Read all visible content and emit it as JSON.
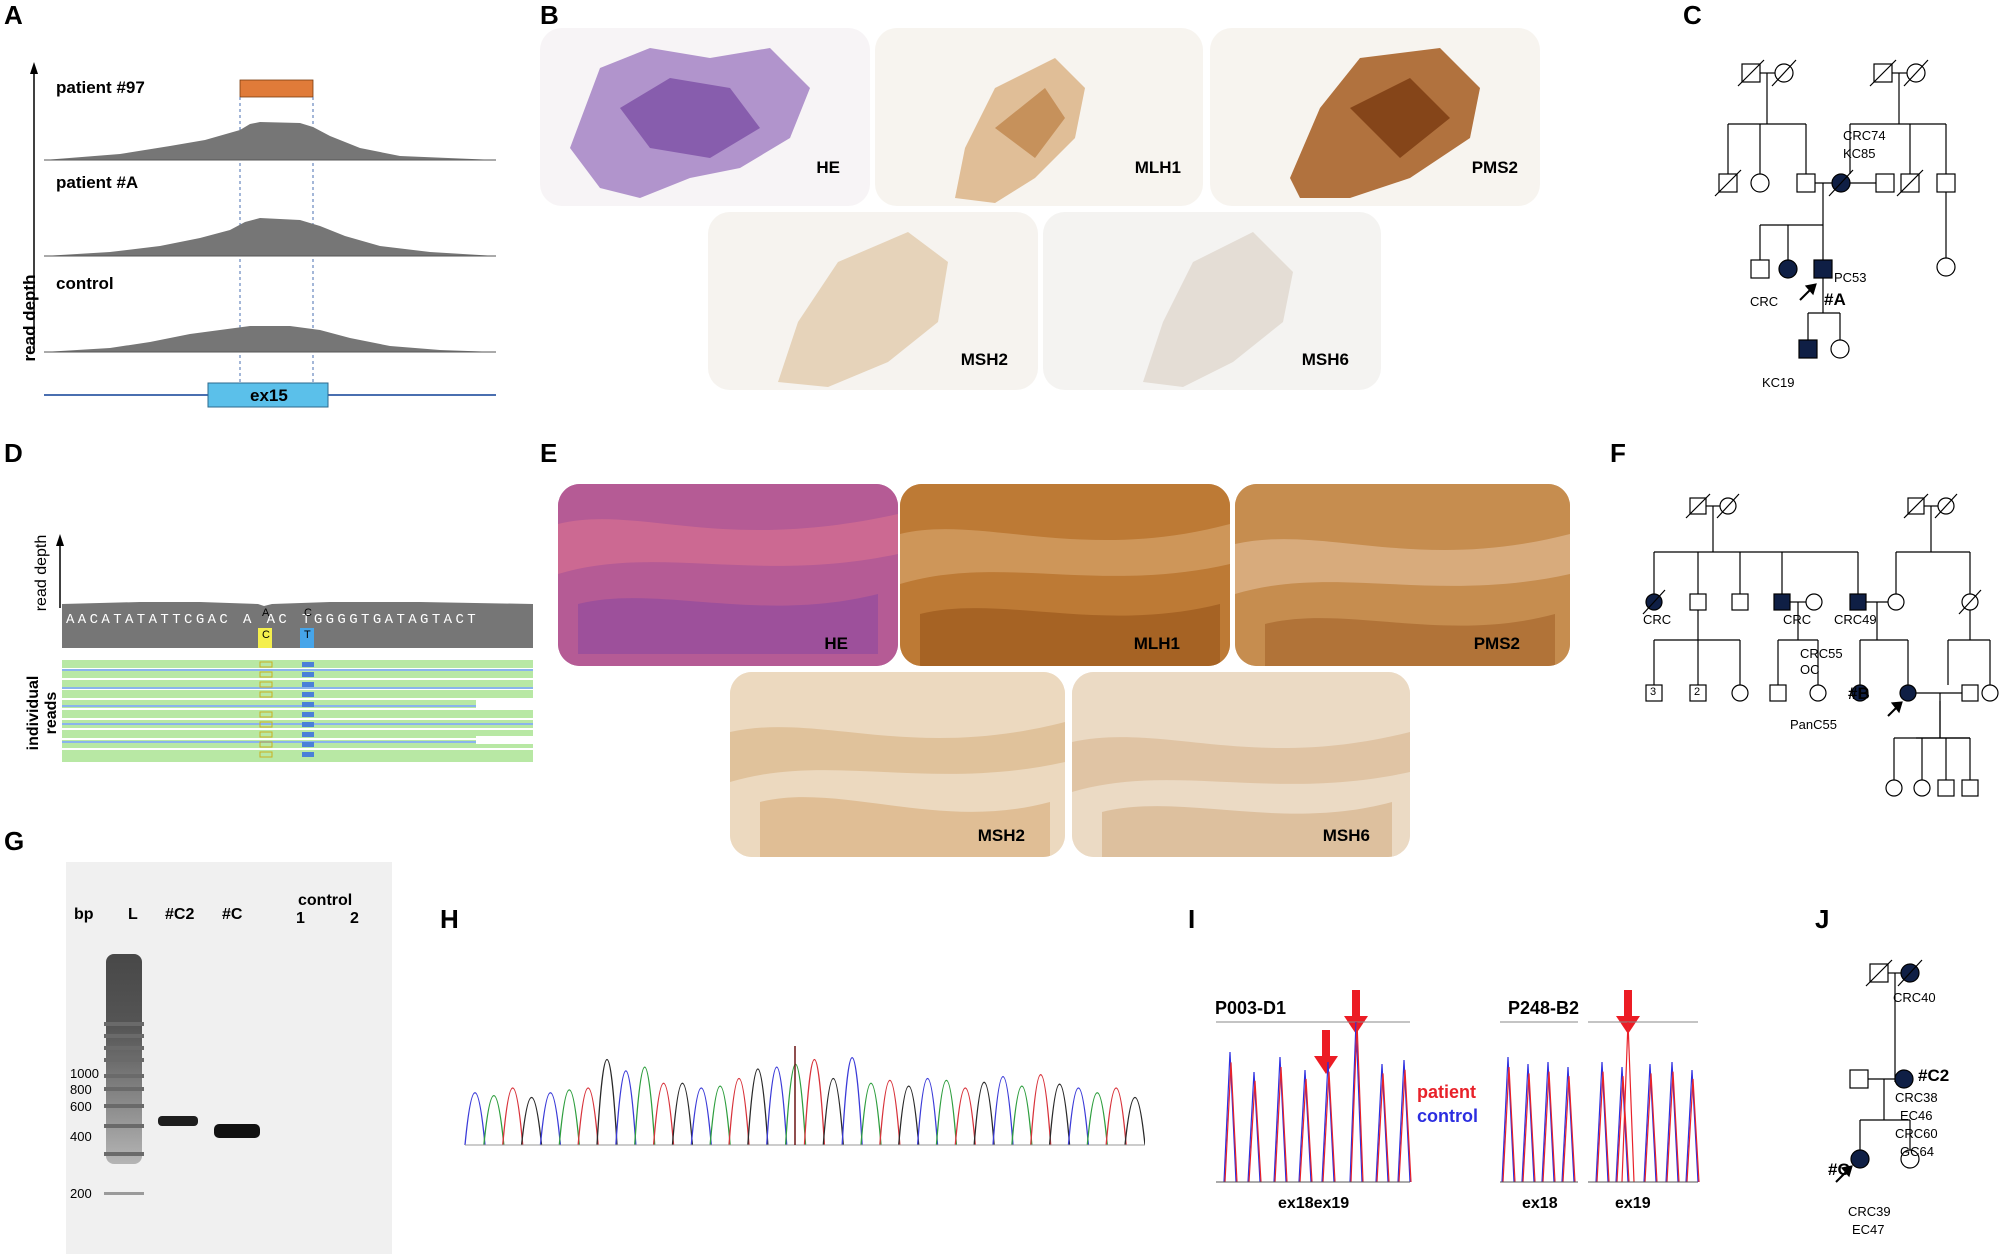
{
  "panels": {
    "A": {
      "letter": "A",
      "tracks": [
        "patient #97",
        "patient #A",
        "control"
      ],
      "axis_label": "read depth",
      "exon": "ex15"
    },
    "B": {
      "letter": "B",
      "stains": [
        "HE",
        "MLH1",
        "PMS2",
        "MSH2",
        "MSH6"
      ]
    },
    "C": {
      "letter": "C",
      "labels": {
        "top": "CRC74",
        "top2": "KC85",
        "crc": "CRC",
        "pc": "PC53",
        "proband": "#A",
        "kc": "KC19"
      }
    },
    "D": {
      "letter": "D",
      "axis_label": "read depth",
      "reads_label_1": "individual",
      "reads_label_2": "reads",
      "sequence": "AACATATATTCGAC A AC TGGGGTGATAGTACT",
      "ref_1": "A",
      "alt_1": "C",
      "ref_2": "C",
      "alt_2": "T"
    },
    "E": {
      "letter": "E",
      "stains": [
        "HE",
        "MLH1",
        "PMS2",
        "MSH2",
        "MSH6"
      ]
    },
    "F": {
      "letter": "F",
      "labels": {
        "crc_a": "CRC",
        "crc_b": "CRC",
        "crc49": "CRC49",
        "crc55": "CRC55",
        "oc": "OC",
        "proband": "#B",
        "panc": "PanC55",
        "box3": "3",
        "box2": "2"
      }
    },
    "G": {
      "letter": "G",
      "lanes": {
        "bp": "bp",
        "ladder": "L",
        "c2": "#C2",
        "c": "#C",
        "control": "control",
        "ctrl1": "1",
        "ctrl2": "2"
      },
      "ladder_sizes": [
        "1000",
        "800",
        "600",
        "400",
        "200"
      ]
    },
    "H": {
      "letter": "H"
    },
    "I": {
      "letter": "I",
      "probe1": "P003-D1",
      "probe2": "P248-B2",
      "legend_patient": "patient",
      "legend_control": "control",
      "x1": "ex18ex19",
      "x2": "ex18",
      "x3": "ex19"
    },
    "J": {
      "letter": "J",
      "labels": {
        "crc40": "CRC40",
        "c2": "#C2",
        "crc38": "CRC38",
        "ec46": "EC46",
        "crc60": "CRC60",
        "gc64": "GC64",
        "proband": "#C",
        "crc39": "CRC39",
        "ec47": "EC47"
      }
    }
  },
  "colors": {
    "coverage_gray": "#767676",
    "dup_bar": "#e07b39",
    "exon_fill": "#5bc0ea",
    "affected": "#0f1f45",
    "patient_trace": "#e8222a",
    "control_trace": "#2c2ee0",
    "arrow_red": "#ec1c24"
  }
}
